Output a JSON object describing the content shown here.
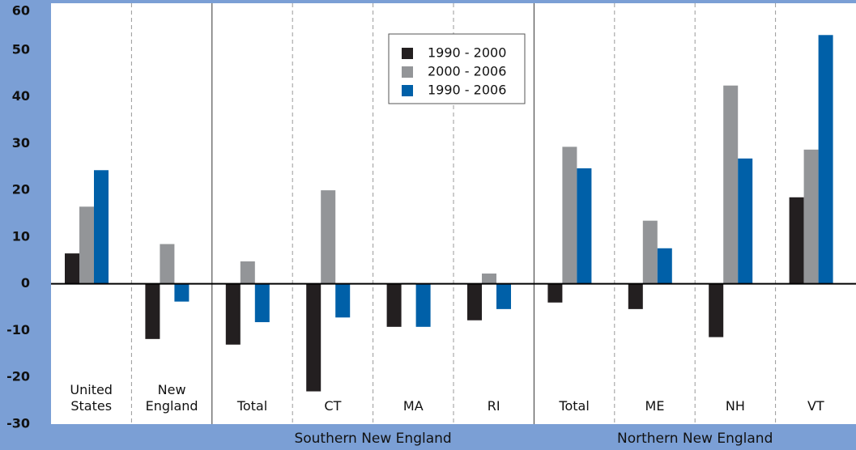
{
  "chart_data": {
    "type": "bar",
    "categories": [
      "United States",
      "New England",
      "Total",
      "CT",
      "MA",
      "RI",
      "Total",
      "ME",
      "NH",
      "VT"
    ],
    "group_labels": [
      "Southern New England",
      "Northern New England"
    ],
    "series": [
      {
        "name": "1990 - 2000",
        "color": "#231f20",
        "values": [
          6.5,
          -11.8,
          -13,
          -23,
          -9.2,
          -7.8,
          -4,
          -5.4,
          -11.4,
          18.5
        ]
      },
      {
        "name": "2000 - 2006",
        "color": "#939598",
        "values": [
          16.5,
          8.5,
          4.8,
          20,
          0.2,
          2.2,
          29.3,
          13.5,
          42.4,
          28.7
        ]
      },
      {
        "name": "1990 - 2006",
        "color": "#0060a8",
        "values": [
          24.3,
          -3.8,
          -8.2,
          -7.2,
          -9.2,
          -5.4,
          24.7,
          7.6,
          26.8,
          53.2
        ]
      }
    ],
    "ylim": [
      -30,
      60
    ],
    "yticks": [
      -30,
      -20,
      -10,
      0,
      10,
      20,
      30,
      40,
      50,
      60
    ],
    "grid": false
  }
}
